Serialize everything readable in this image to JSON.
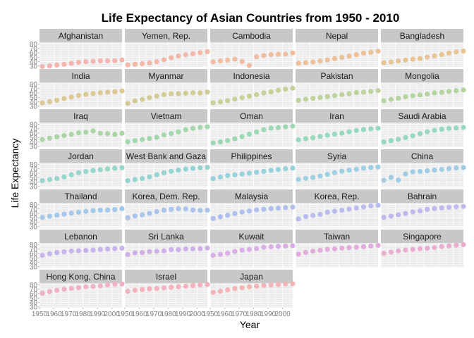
{
  "chart_data": {
    "type": "scatter",
    "facet": "country",
    "title": "Life Expectancy of Asian Countries from 1950 - 2010",
    "xlabel": "Year",
    "ylabel": "Life Expectancy",
    "xlim": [
      1950,
      2007
    ],
    "ylim": [
      28,
      84
    ],
    "x_ticks": [
      1950,
      1960,
      1970,
      1980,
      1990,
      2000
    ],
    "y_ticks": [
      30,
      40,
      50,
      60,
      70,
      80
    ],
    "grid": true,
    "panel_background": "#ebebeb",
    "strip_background": "#c8c8c8",
    "x": [
      1952,
      1957,
      1962,
      1967,
      1972,
      1977,
      1982,
      1987,
      1992,
      1997,
      2002,
      2007
    ],
    "series": [
      {
        "name": "Afghanistan",
        "color": "#f4b4b0",
        "values": [
          28.8,
          30.3,
          32.0,
          34.0,
          36.1,
          38.4,
          39.9,
          40.8,
          41.7,
          41.8,
          42.1,
          43.8
        ]
      },
      {
        "name": "Yemen, Rep.",
        "color": "#f4b8a8",
        "values": [
          32.5,
          33.97,
          35.18,
          36.98,
          39.85,
          44.18,
          49.11,
          52.92,
          55.6,
          58.02,
          60.31,
          62.7
        ]
      },
      {
        "name": "Cambodia",
        "color": "#f0bca0",
        "values": [
          39.4,
          41.4,
          43.4,
          45.4,
          40.3,
          31.2,
          51.0,
          53.9,
          55.8,
          56.5,
          56.8,
          59.7
        ]
      },
      {
        "name": "Nepal",
        "color": "#ecc098",
        "values": [
          36.2,
          37.7,
          39.4,
          41.2,
          43.97,
          46.7,
          49.6,
          52.5,
          55.7,
          59.4,
          61.3,
          63.8
        ]
      },
      {
        "name": "Bangladesh",
        "color": "#e6c494",
        "values": [
          37.5,
          39.3,
          41.2,
          43.5,
          45.3,
          46.9,
          50.0,
          52.8,
          56.0,
          59.4,
          62.0,
          64.1
        ]
      },
      {
        "name": "India",
        "color": "#dcc892",
        "values": [
          37.4,
          40.2,
          43.6,
          47.2,
          50.7,
          54.2,
          56.6,
          58.6,
          60.2,
          61.8,
          62.9,
          64.7
        ]
      },
      {
        "name": "Myanmar",
        "color": "#d2cc94",
        "values": [
          36.3,
          41.9,
          45.1,
          49.4,
          53.1,
          56.1,
          58.1,
          58.3,
          59.3,
          60.3,
          59.9,
          62.1
        ]
      },
      {
        "name": "Indonesia",
        "color": "#c8d098",
        "values": [
          37.5,
          39.9,
          42.5,
          46.0,
          49.2,
          52.7,
          56.2,
          60.1,
          62.7,
          66.0,
          68.6,
          70.7
        ]
      },
      {
        "name": "Pakistan",
        "color": "#bed29c",
        "values": [
          43.4,
          45.6,
          47.7,
          49.8,
          51.9,
          54.0,
          56.2,
          58.2,
          60.8,
          61.8,
          63.6,
          65.5
        ]
      },
      {
        "name": "Mongolia",
        "color": "#b4d4a0",
        "values": [
          42.2,
          45.2,
          48.3,
          51.3,
          53.8,
          55.5,
          57.5,
          60.2,
          61.3,
          63.6,
          65.0,
          66.8
        ]
      },
      {
        "name": "Iraq",
        "color": "#aad6a6",
        "values": [
          45.3,
          48.4,
          51.5,
          54.5,
          57.0,
          60.4,
          62.0,
          65.0,
          59.5,
          58.8,
          57.0,
          59.5
        ]
      },
      {
        "name": "Vietnam",
        "color": "#a2d8ac",
        "values": [
          40.4,
          42.9,
          45.4,
          47.8,
          50.3,
          55.8,
          58.8,
          62.8,
          67.7,
          70.7,
          73.0,
          74.2
        ]
      },
      {
        "name": "Oman",
        "color": "#9cd8b4",
        "values": [
          37.6,
          40.1,
          43.2,
          46.99,
          52.1,
          57.4,
          62.7,
          67.7,
          71.2,
          72.5,
          74.2,
          75.6
        ]
      },
      {
        "name": "Iran",
        "color": "#98d8bc",
        "values": [
          44.9,
          47.2,
          49.3,
          52.5,
          55.2,
          57.7,
          59.6,
          63.0,
          65.7,
          68.0,
          69.5,
          71.0
        ]
      },
      {
        "name": "Saudi Arabia",
        "color": "#96d8c4",
        "values": [
          39.9,
          42.9,
          45.9,
          49.9,
          53.9,
          58.7,
          63.0,
          66.3,
          68.8,
          70.5,
          71.6,
          72.8
        ]
      },
      {
        "name": "Jordan",
        "color": "#96d6cc",
        "values": [
          43.2,
          45.7,
          48.1,
          51.6,
          56.5,
          61.1,
          63.7,
          65.9,
          68.0,
          69.8,
          71.3,
          72.5
        ]
      },
      {
        "name": "West Bank and Gaza",
        "color": "#96d4d4",
        "values": [
          43.2,
          45.7,
          48.1,
          51.6,
          56.5,
          60.8,
          64.4,
          67.0,
          69.7,
          71.1,
          72.4,
          73.4
        ]
      },
      {
        "name": "Philippines",
        "color": "#98d2dc",
        "values": [
          47.8,
          51.3,
          54.8,
          56.4,
          58.1,
          60.1,
          62.1,
          64.2,
          66.5,
          68.6,
          70.3,
          71.7
        ]
      },
      {
        "name": "Syria",
        "color": "#9cd0e2",
        "values": [
          45.9,
          48.3,
          50.3,
          53.7,
          57.3,
          61.2,
          64.6,
          66.97,
          69.2,
          71.5,
          73.1,
          74.1
        ]
      },
      {
        "name": "China",
        "color": "#a0cce6",
        "values": [
          44.0,
          50.5,
          44.5,
          58.4,
          63.1,
          64.0,
          65.5,
          67.3,
          68.7,
          70.4,
          72.0,
          73.0
        ]
      },
      {
        "name": "Thailand",
        "color": "#a4c8ea",
        "values": [
          50.8,
          53.6,
          56.1,
          58.3,
          60.4,
          62.5,
          64.6,
          66.1,
          67.3,
          67.5,
          68.6,
          70.6
        ]
      },
      {
        "name": "Korea, Dem. Rep.",
        "color": "#aac4ec",
        "values": [
          50.1,
          54.1,
          56.7,
          59.9,
          64.0,
          67.2,
          69.1,
          70.6,
          70.0,
          67.7,
          66.7,
          67.3
        ]
      },
      {
        "name": "Malaysia",
        "color": "#b0c0ee",
        "values": [
          48.5,
          52.1,
          55.7,
          59.4,
          63.0,
          65.3,
          68.0,
          69.5,
          70.7,
          71.9,
          73.0,
          74.2
        ]
      },
      {
        "name": "Korea, Rep.",
        "color": "#b8bcee",
        "values": [
          47.5,
          52.7,
          55.3,
          57.7,
          62.6,
          64.8,
          67.1,
          69.8,
          72.2,
          74.6,
          77.0,
          78.6
        ]
      },
      {
        "name": "Bahrain",
        "color": "#c0b8ee",
        "values": [
          50.9,
          53.8,
          56.9,
          59.9,
          63.3,
          65.6,
          69.1,
          70.8,
          72.6,
          73.9,
          74.8,
          75.6
        ]
      },
      {
        "name": "Lebanon",
        "color": "#c8b4ec",
        "values": [
          55.9,
          59.5,
          62.1,
          63.9,
          65.4,
          66.1,
          67.0,
          67.9,
          69.3,
          70.3,
          71.0,
          72.0
        ]
      },
      {
        "name": "Sri Lanka",
        "color": "#d0b0ea",
        "values": [
          57.6,
          61.5,
          62.2,
          64.3,
          65.0,
          65.9,
          68.8,
          69.0,
          70.4,
          70.5,
          70.8,
          72.4
        ]
      },
      {
        "name": "Kuwait",
        "color": "#daaee6",
        "values": [
          55.6,
          58.0,
          60.5,
          64.6,
          67.7,
          69.3,
          71.3,
          74.2,
          75.2,
          76.2,
          76.9,
          77.6
        ]
      },
      {
        "name": "Taiwan",
        "color": "#e2acdc",
        "values": [
          58.5,
          62.4,
          65.2,
          67.5,
          69.4,
          70.6,
          72.2,
          73.4,
          74.3,
          75.3,
          76.99,
          78.4
        ]
      },
      {
        "name": "Singapore",
        "color": "#eaaed2",
        "values": [
          60.4,
          63.2,
          65.8,
          67.9,
          69.5,
          70.8,
          71.8,
          73.6,
          75.8,
          77.2,
          78.8,
          80.0
        ]
      },
      {
        "name": "Hong Kong, China",
        "color": "#f0b0c8",
        "values": [
          60.96,
          64.8,
          67.7,
          70.0,
          72.0,
          73.6,
          75.5,
          76.2,
          77.6,
          80.0,
          81.5,
          82.2
        ]
      },
      {
        "name": "Israel",
        "color": "#f4b2be",
        "values": [
          65.4,
          67.8,
          69.4,
          70.8,
          71.6,
          73.1,
          74.5,
          75.6,
          76.9,
          78.3,
          79.7,
          80.7
        ]
      },
      {
        "name": "Japan",
        "color": "#f4b4b6",
        "values": [
          63.0,
          65.5,
          68.7,
          71.4,
          73.4,
          75.4,
          77.1,
          78.7,
          79.4,
          80.7,
          82.0,
          82.6
        ]
      }
    ]
  }
}
